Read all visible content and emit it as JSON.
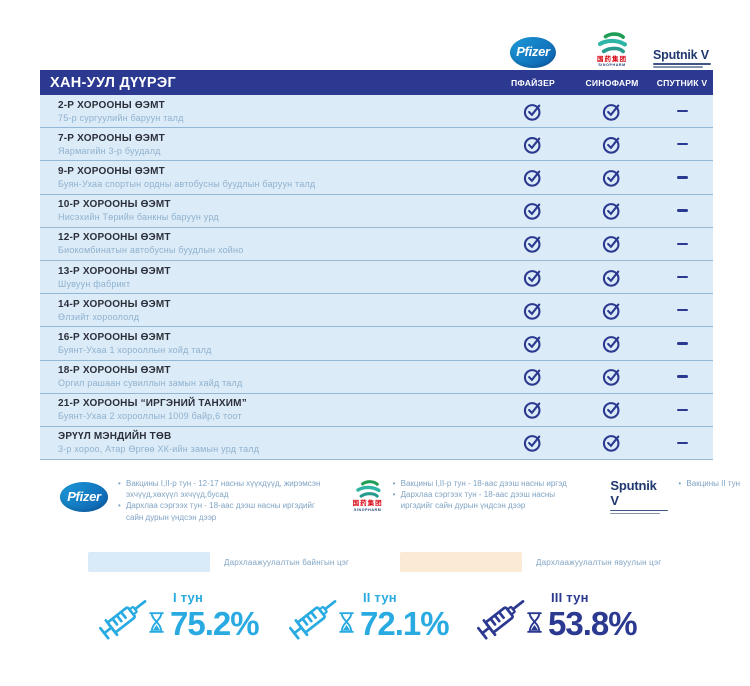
{
  "district": {
    "title": "ХАН-УУЛ ДҮҮРЭГ"
  },
  "header": {
    "columns": [
      "ПФАЙЗЕР",
      "СИНОФАРМ",
      "СПУТНИК V"
    ]
  },
  "logos": {
    "pfizer_text": "Pfizer",
    "sinopharm_cn": "国药集团",
    "sinopharm_en": "SINOPHARM",
    "sputnik_text": "Sputnik V"
  },
  "locations": [
    {
      "name": "2-Р ХОРООНЫ ӨЭМТ",
      "address": "75-р сургуулийн баруун талд",
      "pfizer": true,
      "sinopharm": true,
      "sputnik": false
    },
    {
      "name": "7-Р ХОРООНЫ ӨЭМТ",
      "address": "Яармагийн 3-р буудалд",
      "pfizer": true,
      "sinopharm": true,
      "sputnik": false
    },
    {
      "name": "9-Р ХОРООНЫ ӨЭМТ",
      "address": "Буян-Ухаа спортын ордны автобусны буудлын баруун талд",
      "pfizer": true,
      "sinopharm": true,
      "sputnik": false
    },
    {
      "name": "10-Р ХОРООНЫ ӨЭМТ",
      "address": "Нисэхийн Төрийн банкны баруун урд",
      "pfizer": true,
      "sinopharm": true,
      "sputnik": false
    },
    {
      "name": "12-Р ХОРООНЫ ӨЭМТ",
      "address": "Биокомбинатын автобусны буудлын хойно",
      "pfizer": true,
      "sinopharm": true,
      "sputnik": false
    },
    {
      "name": "13-Р ХОРООНЫ ӨЭМТ",
      "address": "Шувуун фабрикт",
      "pfizer": true,
      "sinopharm": true,
      "sputnik": false
    },
    {
      "name": "14-Р ХОРООНЫ ӨЭМТ",
      "address": "Өлзийт хороололд",
      "pfizer": true,
      "sinopharm": true,
      "sputnik": false
    },
    {
      "name": "16-Р ХОРООНЫ ӨЭМТ",
      "address": "Буянт-Ухаа 1 хорооллын хойд талд",
      "pfizer": true,
      "sinopharm": true,
      "sputnik": false
    },
    {
      "name": "18-Р ХОРООНЫ ӨЭМТ",
      "address": "Оргил рашаан сувиллын замын хайд талд",
      "pfizer": true,
      "sinopharm": true,
      "sputnik": false
    },
    {
      "name": "21-Р ХОРООНЫ “ИРГЭНИЙ ТАНХИМ”",
      "address": "Буянт-Ухаа 2 хорооллын 1009 байр,6 тоот",
      "pfizer": true,
      "sinopharm": true,
      "sputnik": false
    },
    {
      "name": "ЭРҮҮЛ МЭНДИЙН ТӨВ",
      "address": "3-р хороо, Атар Өргөө ХК-ийн замын урд талд",
      "pfizer": true,
      "sinopharm": true,
      "sputnik": false
    }
  ],
  "legend_notes": {
    "pfizer_bullets": [
      "Вакцины I,II-р тун - 12-17 насны хүүхдүүд, жирэмсэн эхчүүд,хөхүүл эхчүүд,бусад",
      "Дархлаа сэргээх тун - 18-аас дээш насны иргэдийг сайн дурын үндсэн дээр"
    ],
    "sinopharm_bullets": [
      "Вакцины I,II-р тун - 18-аас дээш насны иргэд",
      "Дархлаа сэргээх тун - 18-аас дээш насны иргэдийг сайн дурын үндсэн дээр"
    ],
    "sputnik_bullets": [
      "Вакцины II тун"
    ]
  },
  "point_types": [
    {
      "label": "Дархлаажуулалтын байнгын цэг",
      "swatch_color": "#d9eaf9"
    },
    {
      "label": "Дархлаажуулалтын явуулын цэг",
      "swatch_color": "#fcebd4"
    }
  ],
  "dose_stats": [
    {
      "label": "I тун",
      "value": "75.2%",
      "color": "#29abe2"
    },
    {
      "label": "II тун",
      "value": "72.1%",
      "color": "#29abe2"
    },
    {
      "label": "III тун",
      "value": "53.8%",
      "color": "#2b3990"
    }
  ],
  "colors": {
    "header_bar": "#2b3990",
    "row_bg": "#dcebf8",
    "check_mark": "#2b3990",
    "accent_cyan": "#29abe2",
    "note_text": "#7fa3c4"
  }
}
